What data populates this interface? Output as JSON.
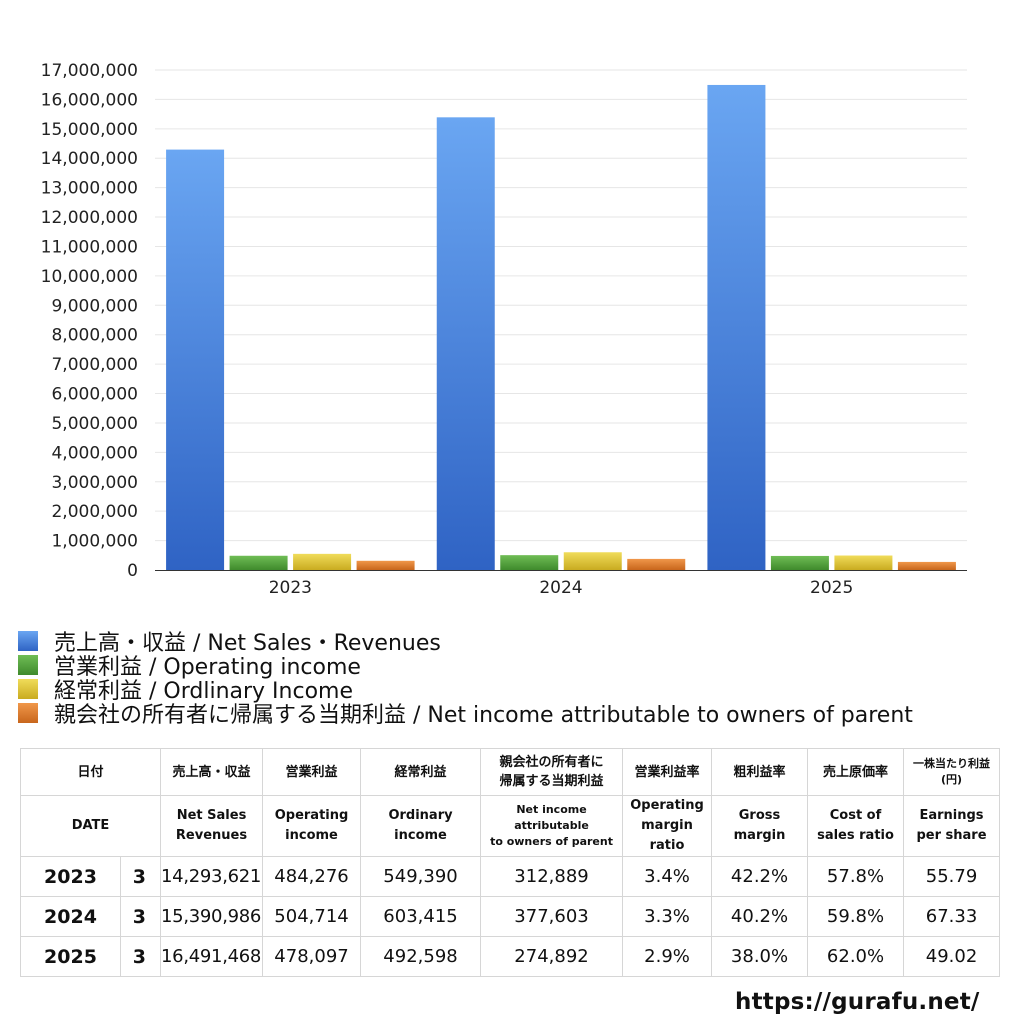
{
  "chart_data": {
    "type": "bar",
    "categories": [
      "2023",
      "2024",
      "2025"
    ],
    "ylim": [
      0,
      17000000
    ],
    "yticks": [
      "0",
      "1,000,000",
      "2,000,000",
      "3,000,000",
      "4,000,000",
      "5,000,000",
      "6,000,000",
      "7,000,000",
      "8,000,000",
      "9,000,000",
      "10,000,000",
      "11,000,000",
      "12,000,000",
      "13,000,000",
      "14,000,000",
      "15,000,000",
      "16,000,000",
      "17,000,000"
    ],
    "grid": true,
    "legend_position": "bottom-left",
    "series": [
      {
        "name": "売上高・収益 / Net Sales・Revenues",
        "values": [
          14293621,
          15390986,
          16491468
        ],
        "color": "#4a86e0",
        "color_light": "#6aa6f2",
        "color_dark": "#2f63c4"
      },
      {
        "name": "営業利益 / Operating income",
        "values": [
          484276,
          504714,
          478097
        ],
        "color": "#54a43c",
        "color_light": "#6fbd55",
        "color_dark": "#3f8a2c"
      },
      {
        "name": "経常利益 / Ordlinary Income",
        "values": [
          549390,
          603415,
          492598
        ],
        "color": "#e0c634",
        "color_light": "#f0dc5a",
        "color_dark": "#c9ab20"
      },
      {
        "name": "親会社の所有者に帰属する当期利益 / Net income attributable to owners of parent",
        "values": [
          312889,
          377603,
          274892
        ],
        "color": "#e07c2c",
        "color_light": "#f0974a",
        "color_dark": "#c8661c"
      }
    ]
  },
  "table": {
    "headers_jp": [
      "日付",
      "売上高・収益",
      "営業利益",
      "経常利益",
      "親会社の所有者に",
      "帰属する当期利益",
      "営業利益率",
      "粗利益率",
      "売上原価率",
      "一株当たり利益",
      "(円)"
    ],
    "headers_en": [
      "DATE",
      "Net Sales",
      "Revenues",
      "Operating",
      "income",
      "Ordinary",
      "income",
      "Net income attributable",
      "to owners of parent",
      "Operating",
      "margin",
      "ratio",
      "Gross",
      "margin",
      "Cost of",
      "sales ratio",
      "Earnings",
      "per share"
    ],
    "rows": [
      {
        "year": "2023",
        "month": "3",
        "sales": "14,293,621",
        "operating": "484,276",
        "ordinary": "549,390",
        "net": "312,889",
        "op_margin": "3.4%",
        "gross": "42.2%",
        "cost": "57.8%",
        "eps": "55.79"
      },
      {
        "year": "2024",
        "month": "3",
        "sales": "15,390,986",
        "operating": "504,714",
        "ordinary": "603,415",
        "net": "377,603",
        "op_margin": "3.3%",
        "gross": "40.2%",
        "cost": "59.8%",
        "eps": "67.33"
      },
      {
        "year": "2025",
        "month": "3",
        "sales": "16,491,468",
        "operating": "478,097",
        "ordinary": "492,598",
        "net": "274,892",
        "op_margin": "2.9%",
        "gross": "38.0%",
        "cost": "62.0%",
        "eps": "49.02"
      }
    ]
  },
  "footer": {
    "url": "https://gurafu.net/"
  }
}
